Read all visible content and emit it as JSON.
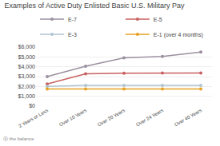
{
  "chart_data": {
    "type": "line",
    "title": "Examples of Active Duty Enlisted Basic U.S. Military Pay",
    "categories": [
      "2 Years or Less",
      "Over 10 Years",
      "Over 20 Years",
      "Over 24 Years",
      "Over 40 Years"
    ],
    "series": [
      {
        "name": "E-7",
        "color": "#9b8fa0",
        "values": [
          3000,
          4050,
          4900,
          5050,
          5500
        ]
      },
      {
        "name": "E-5",
        "color": "#c96060",
        "values": [
          2250,
          3280,
          3340,
          3360,
          3360
        ]
      },
      {
        "name": "E-3",
        "color": "#b0c4d0",
        "values": [
          2000,
          2100,
          2100,
          2110,
          2110
        ]
      },
      {
        "name": "E-1 (over 4 months)",
        "color": "#e8a020",
        "values": [
          1750,
          1750,
          1750,
          1750,
          1750
        ]
      }
    ],
    "ylim": [
      0,
      6000
    ],
    "yticks": [
      {
        "value": 0,
        "label": "$0"
      },
      {
        "value": 1000,
        "label": "$1,000"
      },
      {
        "value": 2000,
        "label": "$2,000"
      },
      {
        "value": 3000,
        "label": "$3,000"
      },
      {
        "value": 4000,
        "label": "$4,000"
      },
      {
        "value": 5000,
        "label": "$5,000"
      },
      {
        "value": 6000,
        "label": "$6,000"
      }
    ],
    "grid": true,
    "legend": "top",
    "marker": "circle",
    "annotations": [
      "ⓑ the balance"
    ]
  }
}
